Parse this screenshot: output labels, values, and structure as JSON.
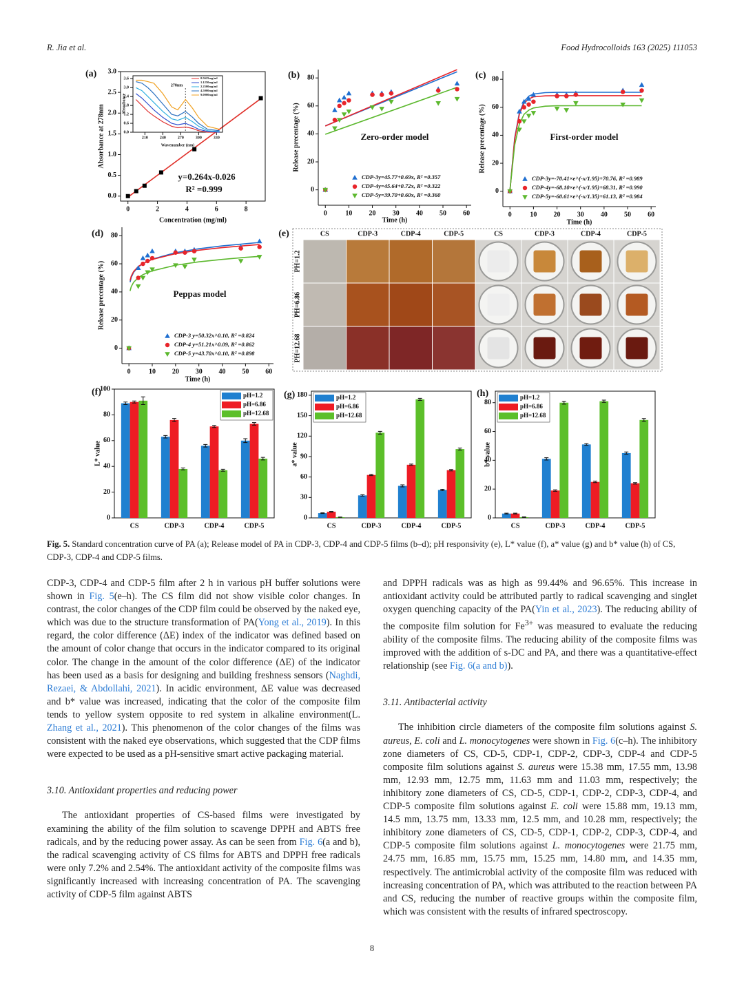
{
  "header": {
    "author": "R. Jia et al.",
    "journal": "Food Hydrocolloids 163 (2025) 111053"
  },
  "chart_data": [
    {
      "type": "scatter",
      "panel": "(a)",
      "frame": true,
      "x": [
        0,
        0.5625,
        1.125,
        2.25,
        4.5,
        9
      ],
      "values": [
        0,
        0.12,
        0.25,
        0.57,
        1.13,
        2.36
      ],
      "color": "#000000",
      "marker": "square",
      "fit_x": [
        0,
        9
      ],
      "fit": [
        -0.026,
        2.35
      ],
      "fit_color": "#e0302a",
      "xlim": [
        -0.5,
        9.3
      ],
      "xticks": [
        0,
        2,
        4,
        6,
        8
      ],
      "ylim": [
        -0.12,
        3.0
      ],
      "yticks": [
        {
          "value": 0,
          "label": "0.0"
        },
        0.5,
        {
          "value": 1,
          "label": "1.0"
        },
        1.5,
        {
          "value": 2,
          "label": "2.0"
        },
        2.5,
        {
          "value": 3,
          "label": "3.0"
        }
      ],
      "xlabel": "Concentration (mg/ml)",
      "ylabel": "Absorbance at 278nm",
      "annotations": [
        "y=0.264x-0.026",
        "R² =0.999"
      ]
    },
    {
      "type": "line",
      "frame": true,
      "x": [
        195,
        205,
        215,
        225,
        240,
        255,
        265,
        278,
        290,
        300,
        315,
        335
      ],
      "series": [
        {
          "name": "0.5625mg/ml",
          "color": "#e03030",
          "values": [
            2.2,
            1.8,
            1.4,
            1.1,
            0.7,
            0.4,
            0.3,
            0.35,
            0.25,
            0.1,
            0.0,
            0.0
          ]
        },
        {
          "name": "1.1250mg/ml",
          "color": "#3050d0",
          "values": [
            2.6,
            2.3,
            1.9,
            1.5,
            1.0,
            0.6,
            0.5,
            0.6,
            0.4,
            0.2,
            0.05,
            0.0
          ]
        },
        {
          "name": "2.2500mg/ml",
          "color": "#30b0e0",
          "values": [
            3.0,
            2.8,
            2.4,
            2.0,
            1.4,
            0.9,
            0.8,
            1.0,
            0.7,
            0.4,
            0.1,
            0.05
          ]
        },
        {
          "name": "4.5000mg/ml",
          "color": "#2a70c0",
          "values": [
            3.4,
            3.3,
            3.0,
            2.6,
            1.9,
            1.2,
            1.1,
            1.4,
            1.0,
            0.6,
            0.2,
            0.1
          ]
        },
        {
          "name": "9.0000mg/ml",
          "color": "#f0a020",
          "values": [
            3.5,
            3.5,
            3.4,
            3.3,
            2.6,
            1.7,
            1.5,
            2.2,
            1.6,
            1.0,
            0.4,
            0.2
          ]
        }
      ],
      "xlim": [
        190,
        340
      ],
      "xticks": [
        210,
        240,
        270,
        300,
        330
      ],
      "ylim": [
        0,
        3.8
      ],
      "yticks": [
        {
          "value": 0,
          "label": "0.0"
        },
        0.6,
        1.2,
        1.8,
        2.4,
        {
          "value": 3,
          "label": "3.0"
        },
        3.6
      ],
      "vline": 278,
      "annotations": [
        "278nm"
      ],
      "xlabel": "Wavenumber (nm)",
      "ylabel": "Absorbance"
    },
    {
      "type": "scatter",
      "panel": "(b)",
      "title": "Zero-order model",
      "x": [
        0,
        4,
        6,
        8,
        10,
        20,
        24,
        28,
        48,
        56
      ],
      "fit_x": [
        0,
        56
      ],
      "series": [
        {
          "name": "CDP-3y=45.77+0.69x, R² =0.357",
          "color": "#1f6fd0",
          "marker": "triangle-up",
          "values": [
            0,
            57,
            64,
            66,
            69,
            69,
            69,
            70,
            72,
            76
          ],
          "fit": [
            45.77,
            84.41
          ]
        },
        {
          "name": "CDP-4y=45.64+0.72x, R² =0.322",
          "color": "#e8242a",
          "marker": "circle",
          "values": [
            0,
            50,
            60,
            62,
            64,
            68,
            68,
            69,
            71,
            72
          ],
          "fit": [
            45.64,
            85.96
          ]
        },
        {
          "name": "CDP-5y=39.70+0.60x, R² =0.360",
          "color": "#5cb82e",
          "marker": "triangle-down",
          "values": [
            0,
            44,
            50,
            54,
            56,
            59,
            58,
            63,
            62,
            65
          ],
          "fit": [
            39.7,
            73.3
          ]
        }
      ],
      "xlim": [
        -3,
        62
      ],
      "xticks": [
        0,
        10,
        20,
        30,
        40,
        50,
        60
      ],
      "ylim": [
        -11,
        86
      ],
      "yticks": [
        0,
        20,
        40,
        60,
        80
      ],
      "xlabel": "Time (h)",
      "ylabel": "Release precentage (%)"
    },
    {
      "type": "scatter",
      "panel": "(c)",
      "title": "First-order model",
      "x": [
        0,
        4,
        6,
        8,
        10,
        20,
        24,
        28,
        48,
        56
      ],
      "fit_x": [
        0,
        2,
        4,
        6,
        8,
        10,
        15,
        20,
        30,
        40,
        50,
        56
      ],
      "series": [
        {
          "name": "CDP-3y=-70.41×e^(-x/1.95)+70.76, R² =0.989",
          "color": "#1f6fd0",
          "marker": "triangle-up",
          "values": [
            0,
            57,
            64,
            66,
            69,
            69,
            69,
            70,
            72,
            76
          ],
          "fit": [
            0.35,
            38,
            56,
            64,
            68,
            69.5,
            70.5,
            70.7,
            70.76,
            70.76,
            70.76,
            70.76
          ]
        },
        {
          "name": "CDP-4y=-68.10×e^(-x/1.95)+68.31, R² =0.990",
          "color": "#e8242a",
          "marker": "circle",
          "values": [
            0,
            50,
            60,
            62,
            64,
            68,
            68,
            69,
            71,
            72
          ],
          "fit": [
            0,
            37,
            55,
            63,
            66,
            67.5,
            68.2,
            68.3,
            68.31,
            68.31,
            68.31,
            68.31
          ]
        },
        {
          "name": "CDP-5y=-60.61×e^(-x/1.35)+61.13, R² =0.984",
          "color": "#5cb82e",
          "marker": "triangle-down",
          "values": [
            0,
            44,
            50,
            54,
            56,
            59,
            58,
            63,
            62,
            65
          ],
          "fit": [
            0.5,
            33,
            48,
            55,
            58,
            59.5,
            60.8,
            61.1,
            61.13,
            61.13,
            61.13,
            61.13
          ]
        }
      ],
      "xlim": [
        -3,
        62
      ],
      "xticks": [
        0,
        10,
        20,
        30,
        40,
        50,
        60
      ],
      "ylim": [
        -11,
        86
      ],
      "yticks": [
        0,
        20,
        40,
        60,
        80
      ],
      "xlabel": "Time (h)",
      "ylabel": "Release precentage (%)"
    },
    {
      "type": "scatter",
      "panel": "(d)",
      "title": "Peppas model",
      "x": [
        0,
        4,
        6,
        8,
        10,
        20,
        24,
        28,
        48,
        56
      ],
      "fit_x": [
        0.5,
        1,
        2,
        4,
        6,
        10,
        20,
        30,
        40,
        50,
        56
      ],
      "series": [
        {
          "name": "CDP-3 y=50.32x^0.10, R² =0.824",
          "color": "#1f6fd0",
          "marker": "triangle-up",
          "values": [
            0,
            57,
            64,
            66,
            69,
            69,
            69,
            70,
            72,
            76
          ],
          "fit": [
            46.9,
            50.3,
            53.9,
            57.8,
            60.2,
            63.3,
            67.9,
            70.7,
            72.7,
            74.3,
            75.2
          ]
        },
        {
          "name": "CDP-4 y=51.21x^0.09, R² =0.862",
          "color": "#e8242a",
          "marker": "circle",
          "values": [
            0,
            50,
            60,
            62,
            64,
            68,
            68,
            69,
            71,
            72
          ],
          "fit": [
            48.1,
            51.2,
            54.5,
            58.1,
            60.3,
            63.1,
            67.2,
            69.7,
            71.5,
            72.9,
            73.7
          ]
        },
        {
          "name": "CDP-5 y=43.70x^0.10, R² =0.898",
          "color": "#5cb82e",
          "marker": "triangle-down",
          "values": [
            0,
            44,
            50,
            54,
            56,
            59,
            58,
            63,
            62,
            65
          ],
          "fit": [
            40.7,
            43.7,
            46.8,
            50.2,
            52.3,
            55.0,
            59.0,
            61.4,
            63.1,
            64.6,
            65.3
          ]
        }
      ],
      "xlim": [
        -3,
        62
      ],
      "xticks": [
        0,
        10,
        20,
        30,
        40,
        50,
        60
      ],
      "ylim": [
        -11,
        86
      ],
      "yticks": [
        0,
        20,
        40,
        60,
        80
      ],
      "xlabel": "Time (h)",
      "ylabel": "Release precentage (%)"
    },
    {
      "type": "bar",
      "panel": "(f)",
      "frame": true,
      "legend": "upper right",
      "categories": [
        "CS",
        "CDP-3",
        "CDP-4",
        "CDP-5"
      ],
      "series": [
        {
          "name": "pH=1.2",
          "color": "#2080d0",
          "values": [
            89,
            63,
            56,
            60
          ],
          "errors": [
            1,
            1,
            1,
            1.5
          ]
        },
        {
          "name": "pH=6.86",
          "color": "#ee1c24",
          "values": [
            90,
            76,
            71,
            73
          ],
          "errors": [
            0.8,
            1.2,
            0.8,
            1
          ]
        },
        {
          "name": "pH=12.68",
          "color": "#5cbf2a",
          "values": [
            91,
            38,
            37,
            46
          ],
          "errors": [
            3,
            0.8,
            0.8,
            1
          ]
        }
      ],
      "ylim": [
        0,
        100
      ],
      "yticks": [
        0,
        20,
        40,
        60,
        80,
        100
      ],
      "ylabel": "L* value"
    },
    {
      "type": "bar",
      "panel": "(g)",
      "frame": true,
      "legend": "upper left",
      "categories": [
        "CS",
        "CDP-3",
        "CDP-4",
        "CDP-5"
      ],
      "series": [
        {
          "name": "pH=1.2",
          "color": "#2080d0",
          "values": [
            7,
            33,
            47,
            41
          ],
          "errors": [
            0.5,
            1,
            1.5,
            1
          ]
        },
        {
          "name": "pH=6.86",
          "color": "#ee1c24",
          "values": [
            9,
            63,
            78,
            70
          ],
          "errors": [
            0.5,
            1,
            1,
            1
          ]
        },
        {
          "name": "pH=12.68",
          "color": "#5cbf2a",
          "values": [
            1,
            125,
            174,
            101
          ],
          "errors": [
            0.3,
            2,
            1.5,
            1.5
          ]
        }
      ],
      "ylim": [
        0,
        186
      ],
      "yticks": [
        0,
        30,
        60,
        90,
        120,
        150,
        180
      ],
      "ylabel": "a* value"
    },
    {
      "type": "bar",
      "panel": "(h)",
      "frame": true,
      "legend": "upper left",
      "categories": [
        "CS",
        "CDP-3",
        "CDP-4",
        "CDP-5"
      ],
      "series": [
        {
          "name": "pH=1.2",
          "color": "#2080d0",
          "values": [
            3,
            41,
            51,
            45
          ],
          "errors": [
            0.3,
            0.8,
            0.6,
            0.8
          ]
        },
        {
          "name": "pH=6.86",
          "color": "#ee1c24",
          "values": [
            3,
            19,
            25,
            24
          ],
          "errors": [
            0.3,
            0.5,
            0.5,
            0.5
          ]
        },
        {
          "name": "pH=12.68",
          "color": "#5cbf2a",
          "values": [
            0.5,
            80,
            81,
            68
          ],
          "errors": [
            0.2,
            1,
            0.8,
            1
          ]
        }
      ],
      "ylim": [
        0,
        88
      ],
      "yticks": [
        0,
        20,
        40,
        60,
        80
      ],
      "ylabel": "b* value"
    }
  ],
  "ph_image": {
    "panel": "(e)",
    "columns": [
      "CS",
      "CDP-3",
      "CDP-4",
      "CDP-5",
      "CS",
      "CDP-3",
      "CDP-4",
      "CDP-5"
    ],
    "rows": [
      "PH=1.2",
      "PH=6.86",
      "PH=12.68"
    ],
    "film_colors": [
      [
        "#bdb8b0",
        "#b87a3a",
        "#b06a2a",
        "#b4763a"
      ],
      [
        "#c0bab2",
        "#a8521e",
        "#a04818",
        "#a85424"
      ],
      [
        "#b4aea8",
        "#8a3028",
        "#7e2626",
        "#8a3430"
      ]
    ],
    "dish_colors": [
      [
        "#ececec",
        "#c8883a",
        "#a8601c",
        "#dcb06a"
      ],
      [
        "#eeeeee",
        "#c07030",
        "#9a4a1e",
        "#b45a22"
      ],
      [
        "#e4e4e4",
        "#6a1a10",
        "#701c10",
        "#6a1a10"
      ]
    ]
  },
  "caption": {
    "label": "Fig. 5.",
    "text": "Standard concentration curve of PA (a); Release model of PA in CDP-3, CDP-4 and CDP-5 films (b–d); pH responsivity (e), L* value (f), a* value (g) and b* value (h) of CS, CDP-3, CDP-4 and CDP-5 films."
  },
  "body": {
    "left": [
      {
        "runs": [
          "CDP-3, CDP-4 and CDP-5 film after 2 h in various pH buffer solutions were shown in ",
          {
            "link": "Fig. 5"
          },
          "(e–h). The CS film did not show visible color changes. In contrast, the color changes of the CDP film could be observed by the naked eye, which was due to the structure transformation of PA(",
          {
            "link": "Yong et al., 2019"
          },
          "). In this regard, the color difference (ΔE) index of the indicator was defined based on the amount of color change that occurs in the indicator compared to its original color. The change in the amount of the color difference (ΔE) of the indicator has been used as a basis for designing and building freshness sensors (",
          {
            "link": "Naghdi, Rezaei, & Abdollahi, 2021"
          },
          "). In acidic environment, ΔE value was decreased and b* value was increased, indicating that the color of the composite film tends to yellow system opposite to red system in alkaline environment(L. ",
          {
            "link": "Zhang et al., 2021"
          },
          "). This phenomenon of the color changes of the films was consistent with the naked eye observations, which suggested that the CDP films were expected to be used as a pH-sensitive smart active packaging material."
        ]
      },
      {
        "heading": "3.10. Antioxidant properties and reducing power"
      },
      {
        "indent": true,
        "runs": [
          "The antioxidant properties of CS-based films were investigated by examining the ability of the film solution to scavenge DPPH and ABTS free radicals, and by the reducing power assay. As can be seen from ",
          {
            "link": "Fig. 6"
          },
          "(a and b), the radical scavenging activity of CS films for ABTS and DPPH free radicals were only 7.2% and 2.54%. The antioxidant activity of the composite films was significantly increased with increasing concentration of PA. The scavenging activity of CDP-5 film against ABTS"
        ]
      }
    ],
    "right": [
      {
        "runs": [
          "and DPPH radicals was as high as 99.44% and 96.65%. This increase in antioxidant activity could be attributed partly to radical scavenging and singlet oxygen quenching capacity of the PA(",
          {
            "link": "Yin et al., 2023"
          },
          "). The reducing ability of the composite film solution for Fe",
          {
            "sup": "3+"
          },
          " was measured to evaluate the reducing ability of the composite films. The reducing ability of the composite films was improved with the addition of s-DC and PA, and there was a quantitative-effect relationship (see ",
          {
            "link": "Fig. 6(a and b)"
          },
          ")."
        ]
      },
      {
        "heading": "3.11. Antibacterial activity"
      },
      {
        "indent": true,
        "runs": [
          "The inhibition circle diameters of the composite film solutions against ",
          {
            "italic": "S. aureus"
          },
          ", ",
          {
            "italic": "E. coli"
          },
          " and ",
          {
            "italic": "L. monocytogenes"
          },
          " were shown in ",
          {
            "link": "Fig. 6"
          },
          "(c–h). The inhibitory zone diameters of CS, CD-5, CDP-1, CDP-2, CDP-3, CDP-4 and CDP-5 composite film solutions against ",
          {
            "italic": "S. aureus"
          },
          " were 15.38 mm, 17.55 mm, 13.98 mm, 12.93 mm, 12.75 mm, 11.63 mm and 11.03 mm, respectively; the inhibitory zone diameters of CS, CD-5, CDP-1, CDP-2, CDP-3, CDP-4, and CDP-5 composite film solutions against ",
          {
            "italic": "E. coli"
          },
          " were 15.88 mm, 19.13 mm, 14.5 mm, 13.75 mm, 13.33 mm, 12.5 mm, and 10.28 mm, respectively; the inhibitory zone diameters of CS, CD-5, CDP-1, CDP-2, CDP-3, CDP-4, and CDP-5 composite film solutions against ",
          {
            "italic": "L. monocytogenes"
          },
          " were 21.75 mm, 24.75 mm, 16.85 mm, 15.75 mm, 15.25 mm, 14.80 mm, and 14.35 mm, respectively. The antimicrobial activity of the composite film was reduced with increasing concentration of PA, which was attributed to the reaction between PA and CS, reducing the number of reactive groups within the composite film, which was consistent with the results of infrared spectroscopy."
        ]
      }
    ]
  },
  "page_number": "8"
}
